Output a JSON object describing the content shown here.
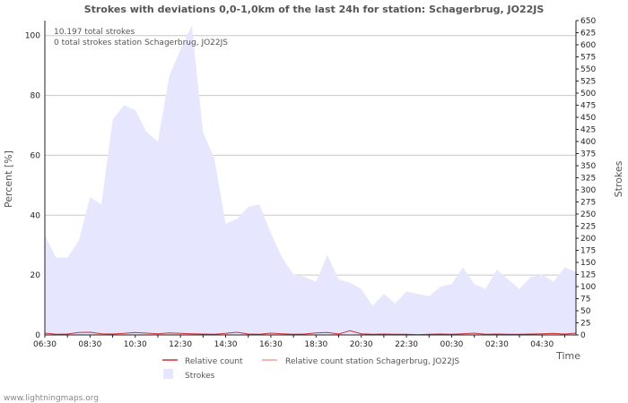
{
  "chart_data": {
    "type": "area",
    "title": "Strokes with deviations 0,0-1,0km of the last 24h for station: Schagerbrug, JO22JS",
    "xlabel": "Time",
    "ylabel_left": "Percent   [%]",
    "ylabel_right": "Strokes",
    "ylim_left": [
      0,
      105
    ],
    "ylim_right": [
      0,
      650
    ],
    "yticks_left": [
      0,
      20,
      40,
      60,
      80,
      100
    ],
    "yticks_right": [
      0,
      25,
      50,
      75,
      100,
      125,
      150,
      175,
      200,
      225,
      250,
      275,
      300,
      325,
      350,
      375,
      400,
      425,
      450,
      475,
      500,
      525,
      550,
      575,
      600,
      625,
      650
    ],
    "xtick_labels": [
      "06:30",
      "08:30",
      "10:30",
      "12:30",
      "14:30",
      "16:30",
      "18:30",
      "20:30",
      "22:30",
      "00:30",
      "02:30",
      "04:30"
    ],
    "x_hours": [
      0,
      0.5,
      1,
      1.5,
      2,
      2.5,
      3,
      3.5,
      4,
      4.5,
      5,
      5.5,
      6,
      6.5,
      7,
      7.5,
      8,
      8.5,
      9,
      9.5,
      10,
      10.5,
      11,
      11.5,
      12,
      12.5,
      13,
      13.5,
      14,
      14.5,
      15,
      15.5,
      16,
      16.5,
      17,
      17.5,
      18,
      18.5,
      19,
      19.5,
      20,
      20.5,
      21,
      21.5,
      22,
      22.5,
      23,
      23.5
    ],
    "series": [
      {
        "name": "Strokes",
        "axis": "right",
        "color": "#e6e6ff",
        "values": [
          205,
          160,
          160,
          195,
          285,
          270,
          445,
          475,
          465,
          420,
          400,
          535,
          590,
          640,
          420,
          365,
          230,
          240,
          265,
          270,
          210,
          160,
          125,
          120,
          110,
          165,
          115,
          108,
          95,
          60,
          85,
          65,
          90,
          85,
          80,
          100,
          105,
          140,
          105,
          95,
          135,
          115,
          95,
          120,
          125,
          110,
          140,
          130
        ]
      },
      {
        "name": "Relative count",
        "axis": "left",
        "color": "#cc3333",
        "values": [
          0.6,
          0.2,
          0.3,
          0.8,
          0.9,
          0.4,
          0.3,
          0.5,
          0.8,
          0.6,
          0.4,
          0.7,
          0.5,
          0.4,
          0.3,
          0.2,
          0.5,
          0.9,
          0.3,
          0.2,
          0.6,
          0.4,
          0.2,
          0.3,
          0.7,
          0.8,
          0.3,
          1.4,
          0.4,
          0.2,
          0.3,
          0.2,
          0.2,
          0.1,
          0.2,
          0.3,
          0.2,
          0.4,
          0.6,
          0.2,
          0.3,
          0.2,
          0.2,
          0.3,
          0.4,
          0.5,
          0.3,
          0.6
        ]
      },
      {
        "name": "Relative count station Schagerbrug, JO22JS",
        "axis": "left",
        "color": "#f0a090",
        "values": [
          0,
          0,
          0,
          0,
          0,
          0,
          0,
          0,
          0,
          0,
          0,
          0,
          0,
          0,
          0,
          0,
          0,
          0,
          0,
          0,
          0,
          0,
          0,
          0,
          0,
          0,
          0,
          0,
          0,
          0,
          0,
          0,
          0,
          0,
          0,
          0,
          0,
          0,
          0,
          0,
          0,
          0,
          0,
          0,
          0,
          0,
          0,
          0
        ]
      }
    ],
    "annotations": [
      "10.197 total strokes",
      "0 total strokes station Schagerbrug, JO22JS"
    ],
    "legend": [
      "Relative count",
      "Relative count station Schagerbrug, JO22JS",
      "Strokes"
    ],
    "grid": true
  },
  "footer": "www.lightningmaps.org"
}
